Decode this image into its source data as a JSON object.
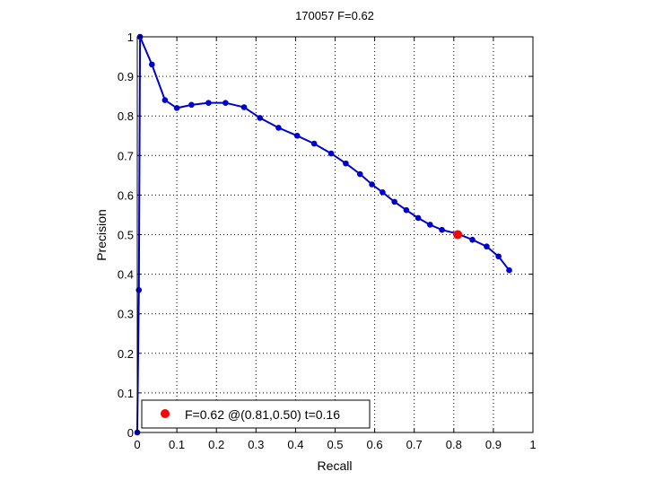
{
  "chart_data": {
    "type": "line",
    "title": "170057 F=0.62",
    "xlabel": "Recall",
    "ylabel": "Precision",
    "xlim": [
      0,
      1
    ],
    "ylim": [
      0,
      1
    ],
    "grid": true,
    "x_ticks": [
      "0",
      "0.1",
      "0.2",
      "0.3",
      "0.4",
      "0.5",
      "0.6",
      "0.7",
      "0.8",
      "0.9",
      "1"
    ],
    "y_ticks": [
      "0",
      "0.1",
      "0.2",
      "0.3",
      "0.4",
      "0.5",
      "0.6",
      "0.7",
      "0.8",
      "0.9",
      "1"
    ],
    "series": [
      {
        "color": "#0000cc",
        "points": [
          [
            0.0,
            0.0
          ],
          [
            0.004,
            0.36
          ],
          [
            0.007,
            1.0
          ],
          [
            0.037,
            0.93
          ],
          [
            0.07,
            0.84
          ],
          [
            0.1,
            0.82
          ],
          [
            0.137,
            0.828
          ],
          [
            0.18,
            0.833
          ],
          [
            0.223,
            0.833
          ],
          [
            0.27,
            0.822
          ],
          [
            0.31,
            0.795
          ],
          [
            0.357,
            0.77
          ],
          [
            0.404,
            0.75
          ],
          [
            0.447,
            0.73
          ],
          [
            0.49,
            0.705
          ],
          [
            0.527,
            0.68
          ],
          [
            0.563,
            0.653
          ],
          [
            0.593,
            0.627
          ],
          [
            0.62,
            0.607
          ],
          [
            0.65,
            0.583
          ],
          [
            0.68,
            0.562
          ],
          [
            0.71,
            0.542
          ],
          [
            0.74,
            0.525
          ],
          [
            0.77,
            0.512
          ],
          [
            0.81,
            0.502
          ],
          [
            0.847,
            0.487
          ],
          [
            0.883,
            0.47
          ],
          [
            0.913,
            0.445
          ],
          [
            0.94,
            0.41
          ]
        ]
      }
    ],
    "highlight": {
      "x": 0.81,
      "y": 0.5,
      "color": "#ff0000"
    },
    "legend": {
      "text": "F=0.62 @(0.81,0.50) t=0.16",
      "position": "bottom-left",
      "marker_color": "#ff0000"
    }
  }
}
